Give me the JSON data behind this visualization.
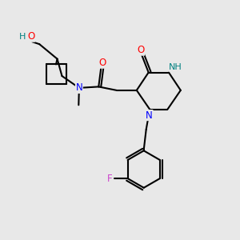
{
  "background_color": "#e8e8e8",
  "bond_color": "#000000",
  "atom_colors": {
    "O": "#ff0000",
    "N": "#0000ff",
    "NH": "#008080",
    "F": "#cc44cc",
    "H": "#008080",
    "C": "#000000"
  },
  "figsize": [
    3.0,
    3.0
  ],
  "dpi": 100
}
